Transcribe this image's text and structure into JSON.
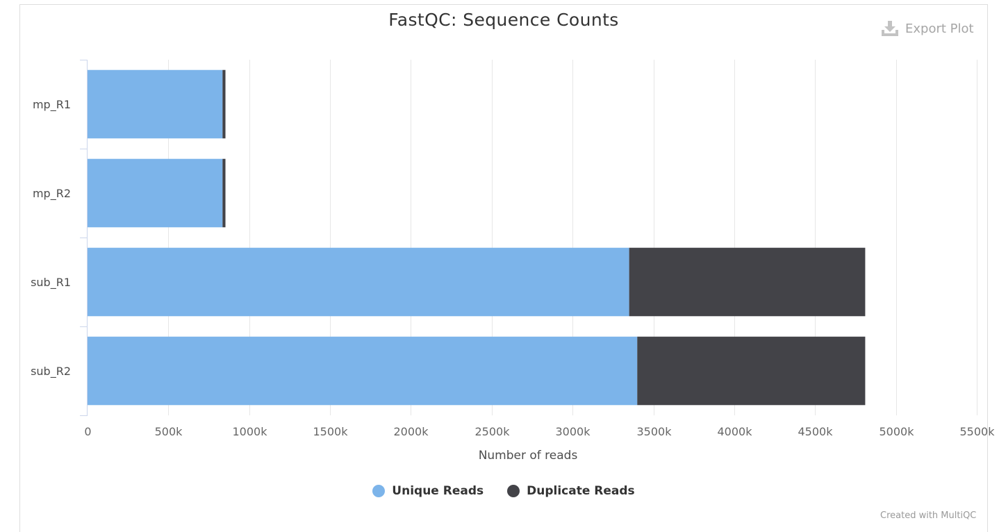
{
  "header": {
    "title": "FastQC: Sequence Counts",
    "export_label": "Export Plot",
    "export_icon": "download-icon"
  },
  "colors": {
    "unique": "#7cb4ea",
    "duplicate": "#434348",
    "grid": "#e6e6e6",
    "axis": "#ccd6eb"
  },
  "chart_data": {
    "type": "bar",
    "orientation": "horizontal",
    "stacked": true,
    "title": "FastQC: Sequence Counts",
    "categories": [
      "mp_R1",
      "mp_R2",
      "sub_R1",
      "sub_R2"
    ],
    "series": [
      {
        "name": "Unique Reads",
        "values": [
          835000,
          835000,
          3350000,
          3400000
        ]
      },
      {
        "name": "Duplicate Reads",
        "values": [
          18000,
          18000,
          1460000,
          1410000
        ]
      }
    ],
    "xlabel": "Number of reads",
    "ylabel": "",
    "xlim": [
      0,
      5500000
    ],
    "xticks": [
      0,
      500000,
      1000000,
      1500000,
      2000000,
      2500000,
      3000000,
      3500000,
      4000000,
      4500000,
      5000000,
      5500000
    ],
    "xtick_labels": [
      "0",
      "500k",
      "1000k",
      "1500k",
      "2000k",
      "2500k",
      "3000k",
      "3500k",
      "4000k",
      "4500k",
      "5000k",
      "5500k"
    ],
    "grid": true,
    "legend_position": "bottom-center"
  },
  "footer": {
    "credit": "Created with MultiQC"
  }
}
